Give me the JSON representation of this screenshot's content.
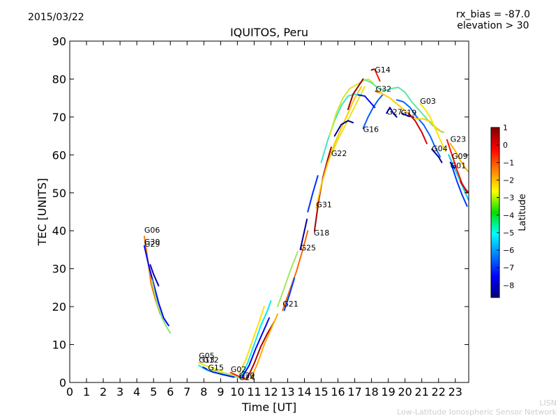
{
  "header": {
    "date": "2015/03/22",
    "rx_bias": "rx_bias = -87.0",
    "elevation": "elevation > 30"
  },
  "credit": {
    "short": "LISN",
    "long": "Low-Latitude Ionospheric Sensor Network"
  },
  "chart_data": {
    "type": "line",
    "title": "IQUITOS, Peru",
    "xlabel": "Time [UT]",
    "ylabel": "TEC [UNITS]",
    "xlim": [
      0,
      23.8
    ],
    "ylim": [
      0,
      90
    ],
    "xticks": [
      0,
      1,
      2,
      3,
      4,
      5,
      6,
      7,
      8,
      9,
      10,
      11,
      12,
      13,
      14,
      15,
      16,
      17,
      18,
      19,
      20,
      21,
      22,
      23
    ],
    "yticks": [
      0,
      10,
      20,
      30,
      40,
      50,
      60,
      70,
      80,
      90
    ],
    "colorbar": {
      "label": "Latitude",
      "range": [
        -8.7,
        1
      ],
      "ticks": [
        1,
        0,
        -1,
        -2,
        -3,
        -4,
        -5,
        -6,
        -7,
        -8
      ]
    },
    "satellite_labels": [
      {
        "name": "G06",
        "x": 4.45,
        "y": 39.5
      },
      {
        "name": "G30",
        "x": 4.45,
        "y": 36.4
      },
      {
        "name": "G29",
        "x": 4.45,
        "y": 35.8
      },
      {
        "name": "G05",
        "x": 7.7,
        "y": 6.3
      },
      {
        "name": "G13",
        "x": 7.7,
        "y": 5.2
      },
      {
        "name": "G12",
        "x": 7.95,
        "y": 5.2
      },
      {
        "name": "G15",
        "x": 8.25,
        "y": 3.2
      },
      {
        "name": "G02",
        "x": 9.6,
        "y": 2.8
      },
      {
        "name": "G20",
        "x": 10.1,
        "y": 1.2
      },
      {
        "name": "G24",
        "x": 10.1,
        "y": 0.6
      },
      {
        "name": "G21",
        "x": 12.7,
        "y": 20.0
      },
      {
        "name": "G25",
        "x": 13.75,
        "y": 34.8
      },
      {
        "name": "G18",
        "x": 14.55,
        "y": 38.8
      },
      {
        "name": "G31",
        "x": 14.7,
        "y": 46.2
      },
      {
        "name": "G22",
        "x": 15.6,
        "y": 59.7
      },
      {
        "name": "G16",
        "x": 17.5,
        "y": 66.0
      },
      {
        "name": "G27",
        "x": 18.9,
        "y": 70.6
      },
      {
        "name": "G19",
        "x": 19.75,
        "y": 70.4
      },
      {
        "name": "G14",
        "x": 18.2,
        "y": 81.7
      },
      {
        "name": "G32",
        "x": 18.25,
        "y": 76.7
      },
      {
        "name": "G03",
        "x": 20.9,
        "y": 73.5
      },
      {
        "name": "G04",
        "x": 21.6,
        "y": 61.0
      },
      {
        "name": "G23",
        "x": 22.7,
        "y": 63.5
      },
      {
        "name": "G09",
        "x": 22.8,
        "y": 59.0
      },
      {
        "name": "G01",
        "x": 22.7,
        "y": 56.5
      }
    ],
    "series": [
      {
        "name": "G06",
        "lat": -1.5,
        "points": [
          [
            4.45,
            38.5
          ],
          [
            4.6,
            34
          ],
          [
            4.85,
            26
          ],
          [
            5.1,
            22
          ],
          [
            5.4,
            18
          ]
        ]
      },
      {
        "name": "G30",
        "lat": -7.5,
        "points": [
          [
            4.45,
            36
          ],
          [
            4.7,
            31
          ],
          [
            5.0,
            26
          ],
          [
            5.3,
            21
          ],
          [
            5.6,
            17
          ],
          [
            5.9,
            15
          ]
        ]
      },
      {
        "name": "G30b",
        "lat": -3.8,
        "points": [
          [
            4.9,
            27
          ],
          [
            5.2,
            21
          ],
          [
            5.5,
            17
          ],
          [
            5.8,
            14.5
          ],
          [
            6.0,
            13
          ]
        ]
      },
      {
        "name": "G29",
        "lat": -8.3,
        "points": [
          [
            4.8,
            31
          ],
          [
            5.0,
            28.5
          ],
          [
            5.3,
            25.5
          ]
        ]
      },
      {
        "name": "G05",
        "lat": -2.8,
        "points": [
          [
            7.7,
            5.2
          ],
          [
            8.1,
            4.4
          ],
          [
            8.6,
            3.8
          ],
          [
            9.1,
            3.0
          ]
        ]
      },
      {
        "name": "G13",
        "lat": -4.8,
        "points": [
          [
            7.7,
            4.5
          ],
          [
            8.2,
            3.2
          ],
          [
            8.8,
            2.5
          ],
          [
            9.4,
            2.0
          ],
          [
            10.0,
            1.4
          ],
          [
            10.3,
            1.0
          ]
        ]
      },
      {
        "name": "G12",
        "lat": -7.2,
        "points": [
          [
            7.95,
            4.0
          ],
          [
            8.5,
            2.8
          ],
          [
            9.2,
            2.0
          ],
          [
            9.8,
            1.4
          ]
        ]
      },
      {
        "name": "G15",
        "lat": -3.2,
        "points": [
          [
            8.25,
            3.5
          ],
          [
            8.9,
            2.8
          ],
          [
            9.5,
            2.2
          ],
          [
            10.0,
            1.6
          ]
        ]
      },
      {
        "name": "G02",
        "lat": -0.6,
        "points": [
          [
            9.6,
            2.6
          ],
          [
            10.0,
            1.8
          ],
          [
            10.4,
            1.0
          ],
          [
            10.6,
            0.8
          ]
        ]
      },
      {
        "name": "G20",
        "lat": -2.6,
        "points": [
          [
            10.1,
            2.5
          ],
          [
            10.5,
            6
          ],
          [
            10.9,
            11
          ],
          [
            11.3,
            16
          ],
          [
            11.6,
            20
          ]
        ]
      },
      {
        "name": "G20b",
        "lat": -5.0,
        "points": [
          [
            10.2,
            1.6
          ],
          [
            10.6,
            5
          ],
          [
            11.0,
            10
          ],
          [
            11.4,
            15
          ],
          [
            11.8,
            19
          ],
          [
            12.0,
            21.5
          ]
        ]
      },
      {
        "name": "G24",
        "lat": -7.6,
        "points": [
          [
            10.3,
            1.5
          ],
          [
            10.7,
            4.5
          ],
          [
            11.1,
            9
          ],
          [
            11.5,
            13
          ],
          [
            11.9,
            17
          ]
        ]
      },
      {
        "name": "G24b",
        "lat": 0.6,
        "points": [
          [
            10.6,
            1.2
          ],
          [
            11.0,
            5
          ],
          [
            11.4,
            9.5
          ],
          [
            11.8,
            13
          ],
          [
            12.2,
            16
          ]
        ]
      },
      {
        "name": "G24c",
        "lat": -2.0,
        "points": [
          [
            10.8,
            1.0
          ],
          [
            11.2,
            5
          ],
          [
            11.6,
            10
          ],
          [
            12.0,
            14
          ],
          [
            12.4,
            18
          ]
        ]
      },
      {
        "name": "G21",
        "lat": -1.3,
        "points": [
          [
            12.7,
            19
          ],
          [
            13.1,
            24
          ],
          [
            13.5,
            29
          ],
          [
            13.9,
            35
          ],
          [
            14.2,
            40
          ]
        ]
      },
      {
        "name": "G21b",
        "lat": -3.5,
        "points": [
          [
            12.4,
            20
          ],
          [
            12.8,
            25
          ],
          [
            13.2,
            30
          ],
          [
            13.6,
            34.5
          ]
        ]
      },
      {
        "name": "G21c",
        "lat": -6.8,
        "points": [
          [
            12.8,
            19
          ],
          [
            13.1,
            23
          ],
          [
            13.4,
            27.5
          ]
        ]
      },
      {
        "name": "G25",
        "lat": -8.4,
        "points": [
          [
            13.75,
            35
          ],
          [
            13.95,
            39
          ],
          [
            14.15,
            43
          ]
        ]
      },
      {
        "name": "G25b",
        "lat": -7.0,
        "points": [
          [
            14.2,
            45
          ],
          [
            14.5,
            50
          ],
          [
            14.8,
            54.5
          ]
        ]
      },
      {
        "name": "G18",
        "lat": 0.7,
        "points": [
          [
            14.6,
            40
          ],
          [
            14.85,
            48
          ],
          [
            15.1,
            54
          ],
          [
            15.4,
            59
          ],
          [
            15.6,
            62
          ]
        ]
      },
      {
        "name": "G31",
        "lat": -2.3,
        "points": [
          [
            14.7,
            46
          ],
          [
            15.0,
            52
          ],
          [
            15.4,
            58
          ],
          [
            15.8,
            63
          ],
          [
            16.2,
            67
          ],
          [
            16.6,
            71
          ],
          [
            17.0,
            75
          ],
          [
            17.4,
            78
          ]
        ]
      },
      {
        "name": "G22",
        "lat": -2.9,
        "points": [
          [
            15.6,
            60
          ],
          [
            16.0,
            64
          ],
          [
            16.4,
            67.5
          ],
          [
            16.8,
            71
          ],
          [
            17.2,
            74.5
          ],
          [
            17.6,
            78
          ]
        ]
      },
      {
        "name": "G22b",
        "lat": -4.5,
        "points": [
          [
            15.0,
            58
          ],
          [
            15.4,
            64
          ],
          [
            15.8,
            69
          ],
          [
            16.2,
            73
          ],
          [
            16.6,
            75.5
          ],
          [
            17.0,
            76
          ],
          [
            17.4,
            75.8
          ]
        ]
      },
      {
        "name": "G22c",
        "lat": -3.0,
        "points": [
          [
            15.5,
            65
          ],
          [
            15.9,
            71
          ],
          [
            16.3,
            75
          ],
          [
            16.7,
            77.5
          ],
          [
            17.1,
            78.5
          ],
          [
            17.5,
            79.5
          ],
          [
            17.8,
            80
          ],
          [
            18.1,
            79
          ]
        ]
      },
      {
        "name": "G16",
        "lat": -8.5,
        "points": [
          [
            15.8,
            65
          ],
          [
            16.2,
            68
          ],
          [
            16.6,
            69
          ],
          [
            16.9,
            68.5
          ]
        ]
      },
      {
        "name": "G16b",
        "lat": -6.5,
        "points": [
          [
            17.5,
            67
          ],
          [
            17.8,
            70
          ],
          [
            18.1,
            72.5
          ],
          [
            18.4,
            74.5
          ],
          [
            18.7,
            76
          ]
        ]
      },
      {
        "name": "G16c",
        "lat": 0.8,
        "points": [
          [
            16.6,
            72
          ],
          [
            16.9,
            76
          ],
          [
            17.2,
            78
          ],
          [
            17.5,
            80
          ]
        ]
      },
      {
        "name": "G14",
        "lat": -0.5,
        "points": [
          [
            18.2,
            82.5
          ],
          [
            18.35,
            81
          ],
          [
            18.5,
            79.5
          ]
        ]
      },
      {
        "name": "G14b",
        "lat": 0.9,
        "points": [
          [
            18.0,
            82.4
          ],
          [
            18.15,
            82.6
          ]
        ]
      },
      {
        "name": "G32",
        "lat": 0.5,
        "points": [
          [
            18.25,
            76.8
          ],
          [
            18.6,
            76.3
          ]
        ]
      },
      {
        "name": "G32b",
        "lat": -4.2,
        "points": [
          [
            17.6,
            79.8
          ],
          [
            18.0,
            79
          ],
          [
            18.4,
            77.6
          ],
          [
            18.8,
            77
          ],
          [
            19.2,
            77.5
          ],
          [
            19.6,
            77.8
          ],
          [
            20.0,
            76.5
          ],
          [
            20.4,
            74
          ],
          [
            20.8,
            72
          ],
          [
            21.2,
            70
          ],
          [
            21.6,
            68
          ],
          [
            22.0,
            66.5
          ],
          [
            22.3,
            66
          ]
        ]
      },
      {
        "name": "G27",
        "lat": -7.4,
        "points": [
          [
            17.2,
            75.8
          ],
          [
            17.6,
            75.5
          ],
          [
            17.9,
            74
          ],
          [
            18.2,
            72.5
          ]
        ]
      },
      {
        "name": "G27b",
        "lat": -8.2,
        "points": [
          [
            18.9,
            71
          ],
          [
            19.1,
            72.5
          ],
          [
            19.3,
            71
          ],
          [
            19.5,
            70
          ]
        ]
      },
      {
        "name": "G27c",
        "lat": -6.4,
        "points": [
          [
            19.5,
            74.5
          ],
          [
            19.9,
            74
          ],
          [
            20.3,
            72.5
          ],
          [
            20.7,
            70
          ],
          [
            21.1,
            68
          ],
          [
            21.5,
            65
          ],
          [
            21.8,
            62
          ],
          [
            22.1,
            59.5
          ]
        ]
      },
      {
        "name": "G19",
        "lat": -2.4,
        "points": [
          [
            18.3,
            77
          ],
          [
            18.7,
            76
          ],
          [
            19.1,
            75
          ],
          [
            19.5,
            73.5
          ],
          [
            19.9,
            72
          ],
          [
            20.3,
            70.5
          ],
          [
            20.7,
            69.5
          ],
          [
            21.1,
            69.5
          ],
          [
            21.5,
            68.8
          ],
          [
            21.9,
            67
          ],
          [
            22.2,
            66
          ]
        ]
      },
      {
        "name": "G19b",
        "lat": -8.0,
        "points": [
          [
            19.8,
            71
          ],
          [
            20.2,
            70.2
          ],
          [
            20.5,
            70
          ]
        ]
      },
      {
        "name": "G19c",
        "lat": 0.2,
        "points": [
          [
            20.2,
            71
          ],
          [
            20.6,
            69
          ],
          [
            21.0,
            66
          ],
          [
            21.3,
            63
          ]
        ]
      },
      {
        "name": "G03",
        "lat": -2.7,
        "points": [
          [
            20.9,
            73.5
          ],
          [
            21.2,
            72
          ],
          [
            21.5,
            70
          ],
          [
            21.8,
            67
          ],
          [
            22.1,
            64
          ],
          [
            22.4,
            61
          ]
        ]
      },
      {
        "name": "G04",
        "lat": -8.5,
        "points": [
          [
            21.6,
            61.5
          ],
          [
            21.8,
            60.5
          ],
          [
            22.0,
            59.5
          ],
          [
            22.2,
            58
          ]
        ]
      },
      {
        "name": "G09",
        "lat": -2.1,
        "points": [
          [
            22.7,
            63
          ],
          [
            23.0,
            61
          ],
          [
            23.3,
            58.5
          ],
          [
            23.6,
            56.5
          ],
          [
            23.8,
            55.5
          ]
        ]
      },
      {
        "name": "G09b",
        "lat": -5.3,
        "points": [
          [
            22.6,
            60
          ],
          [
            22.9,
            57
          ],
          [
            23.2,
            54
          ],
          [
            23.5,
            51
          ],
          [
            23.8,
            48
          ]
        ]
      },
      {
        "name": "G01",
        "lat": -8.6,
        "points": [
          [
            22.7,
            58
          ],
          [
            22.95,
            56.5
          ]
        ]
      },
      {
        "name": "G01b",
        "lat": -6.9,
        "points": [
          [
            22.8,
            57
          ],
          [
            23.1,
            53
          ],
          [
            23.4,
            49.5
          ],
          [
            23.7,
            46.5
          ]
        ]
      },
      {
        "name": "G23",
        "lat": -0.4,
        "points": [
          [
            22.5,
            64
          ],
          [
            22.8,
            60
          ],
          [
            23.1,
            56
          ],
          [
            23.4,
            52.5
          ],
          [
            23.7,
            50
          ]
        ]
      },
      {
        "name": "G23b",
        "lat": 0.3,
        "points": [
          [
            23.3,
            53
          ],
          [
            23.6,
            51
          ],
          [
            23.8,
            50
          ]
        ]
      }
    ]
  }
}
